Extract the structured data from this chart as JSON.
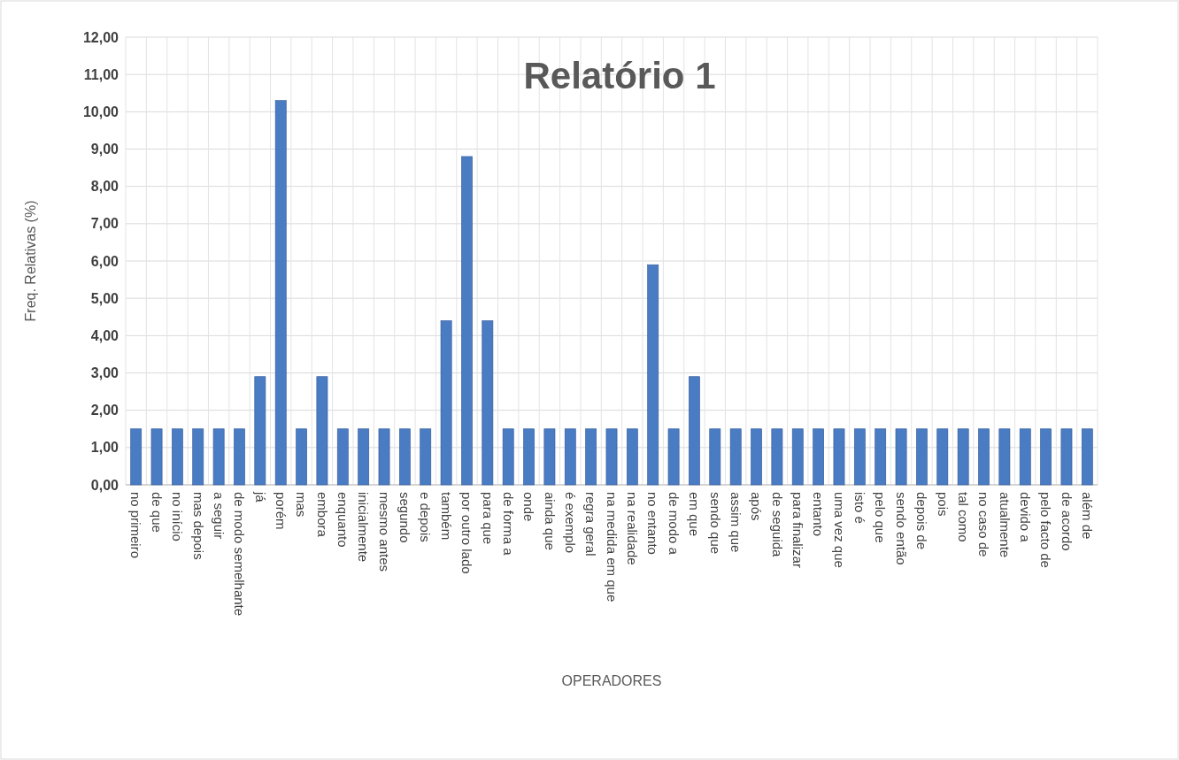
{
  "chart_data": {
    "type": "bar",
    "title": "Relatório 1",
    "xlabel": "OPERADORES",
    "ylabel": "Freq. Relativas (%)",
    "categories": [
      "no primeiro",
      "de que",
      "no início",
      "mas depois",
      "a seguir",
      "de modo semelhante",
      "já",
      "porém",
      "mas",
      "embora",
      "enquanto",
      "inicialmente",
      "mesmo antes",
      "segundo",
      "e depois",
      "também",
      "por outro lado",
      "para que",
      "de forma a",
      "onde",
      "ainda que",
      "é exemplo",
      "regra geral",
      "na medida em que",
      "na realidade",
      "no entanto",
      "de modo a",
      "em que",
      "sendo que",
      "assim que",
      "após",
      "de seguida",
      "para finalizar",
      "entanto",
      "uma vez que",
      "isto é",
      "pelo que",
      "sendo então",
      "depois de",
      "pois",
      "tal como",
      "no caso de",
      "atualmente",
      "devido a",
      "pelo facto de",
      "de acordo",
      "além de"
    ],
    "values": [
      1.5,
      1.5,
      1.5,
      1.5,
      1.5,
      1.5,
      2.9,
      10.3,
      1.5,
      2.9,
      1.5,
      1.5,
      1.5,
      1.5,
      1.5,
      4.4,
      8.8,
      4.4,
      1.5,
      1.5,
      1.5,
      1.5,
      1.5,
      1.5,
      1.5,
      5.9,
      1.5,
      2.9,
      1.5,
      1.5,
      1.5,
      1.5,
      1.5,
      1.5,
      1.5,
      1.5,
      1.5,
      1.5,
      1.5,
      1.5,
      1.5,
      1.5,
      1.5,
      1.5,
      1.5,
      1.5,
      1.5
    ],
    "color": "#4a7cc4",
    "ylim": [
      0,
      12
    ],
    "yticks": [
      {
        "value": 0,
        "label": "0,00"
      },
      {
        "value": 1,
        "label": "1,00"
      },
      {
        "value": 2,
        "label": "2,00"
      },
      {
        "value": 3,
        "label": "3,00"
      },
      {
        "value": 4,
        "label": "4,00"
      },
      {
        "value": 5,
        "label": "5,00"
      },
      {
        "value": 6,
        "label": "6,00"
      },
      {
        "value": 7,
        "label": "7,00"
      },
      {
        "value": 8,
        "label": "8,00"
      },
      {
        "value": 9,
        "label": "9,00"
      },
      {
        "value": 10,
        "label": "10,00"
      },
      {
        "value": 11,
        "label": "11,00"
      },
      {
        "value": 12,
        "label": "12,00"
      }
    ],
    "grid": true
  }
}
